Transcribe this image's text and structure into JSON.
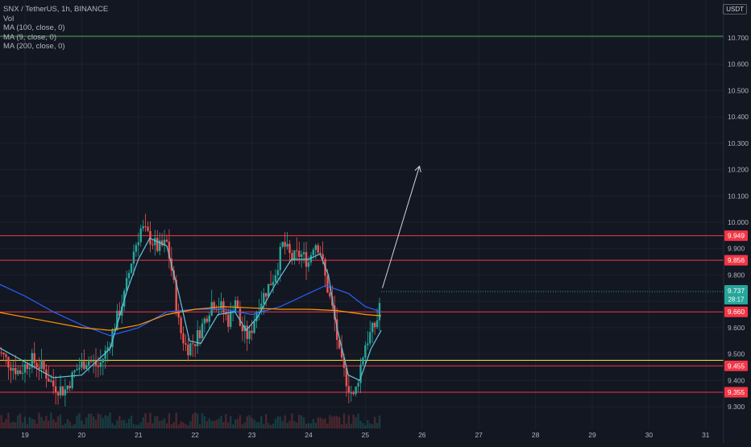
{
  "header": {
    "symbol_line": "SNX / TetherUS, 1h, BINANCE",
    "vol_label": "Vol",
    "indicators": [
      "MA (100, close, 0)",
      "MA (9, close, 0)",
      "MA (200, close, 0)"
    ],
    "currency": "USDT"
  },
  "colors": {
    "background": "#131722",
    "grid": "#1e222d",
    "up": "#26a69a",
    "down": "#ef5350",
    "level_line": "#f23645",
    "ma_short": "#5ec8e0",
    "ma_medium": "#2962ff",
    "ma_long": "#ff9800",
    "support_yellow": "#ffeb3b",
    "top_line": "#4caf50"
  },
  "chart_data": {
    "type": "candlestick",
    "x_ticks": [
      "19",
      "20",
      "21",
      "22",
      "23",
      "24",
      "25",
      "26",
      "27",
      "28",
      "29",
      "30",
      "31"
    ],
    "y_ticks": [
      "9.300",
      "9.400",
      "9.500",
      "9.600",
      "9.700",
      "9.800",
      "9.900",
      "10.000",
      "10.100",
      "10.200",
      "10.300",
      "10.400",
      "10.500",
      "10.600",
      "10.700"
    ],
    "ylim": [
      9.25,
      10.77
    ],
    "current_price": "9.737",
    "countdown": "28:17",
    "horizontal_levels": [
      {
        "value": 9.949,
        "label": "9.949",
        "color": "#f23645"
      },
      {
        "value": 9.856,
        "label": "9.856",
        "color": "#f23645"
      },
      {
        "value": 9.66,
        "label": "9.660",
        "color": "#f23645"
      },
      {
        "value": 9.455,
        "label": "9.455",
        "color": "#f23645"
      },
      {
        "value": 9.355,
        "label": "9.355",
        "color": "#f23645"
      },
      {
        "value": 9.476,
        "label": "",
        "color": "#ffeb3b"
      },
      {
        "value": 10.706,
        "label": "",
        "color": "#4caf50"
      }
    ],
    "arrow": {
      "from": {
        "x": 25.3,
        "y": 9.75
      },
      "to": {
        "x": 25.95,
        "y": 10.21
      }
    },
    "price_path": [
      [
        18.5,
        9.52
      ],
      [
        18.7,
        9.47
      ],
      [
        18.9,
        9.43
      ],
      [
        19.1,
        9.48
      ],
      [
        19.3,
        9.45
      ],
      [
        19.5,
        9.38
      ],
      [
        19.7,
        9.36
      ],
      [
        19.9,
        9.44
      ],
      [
        20.1,
        9.48
      ],
      [
        20.3,
        9.45
      ],
      [
        20.45,
        9.52
      ],
      [
        20.6,
        9.62
      ],
      [
        20.75,
        9.72
      ],
      [
        20.9,
        9.88
      ],
      [
        21.05,
        9.98
      ],
      [
        21.2,
        9.94
      ],
      [
        21.35,
        9.9
      ],
      [
        21.5,
        9.92
      ],
      [
        21.6,
        9.8
      ],
      [
        21.72,
        9.6
      ],
      [
        21.85,
        9.52
      ],
      [
        22.0,
        9.55
      ],
      [
        22.15,
        9.62
      ],
      [
        22.3,
        9.7
      ],
      [
        22.45,
        9.68
      ],
      [
        22.6,
        9.62
      ],
      [
        22.7,
        9.72
      ],
      [
        22.8,
        9.6
      ],
      [
        22.95,
        9.56
      ],
      [
        23.1,
        9.68
      ],
      [
        23.25,
        9.74
      ],
      [
        23.4,
        9.8
      ],
      [
        23.55,
        9.92
      ],
      [
        23.7,
        9.86
      ],
      [
        23.85,
        9.88
      ],
      [
        24.0,
        9.85
      ],
      [
        24.1,
        9.93
      ],
      [
        24.2,
        9.9
      ],
      [
        24.3,
        9.78
      ],
      [
        24.45,
        9.64
      ],
      [
        24.55,
        9.48
      ],
      [
        24.7,
        9.38
      ],
      [
        24.8,
        9.33
      ],
      [
        24.9,
        9.44
      ],
      [
        25.0,
        9.54
      ],
      [
        25.1,
        9.58
      ],
      [
        25.2,
        9.62
      ],
      [
        25.28,
        9.737
      ]
    ],
    "ma_short_path": [
      [
        18.5,
        9.53
      ],
      [
        19.0,
        9.47
      ],
      [
        19.5,
        9.41
      ],
      [
        20.0,
        9.42
      ],
      [
        20.5,
        9.52
      ],
      [
        20.8,
        9.74
      ],
      [
        21.0,
        9.86
      ],
      [
        21.2,
        9.94
      ],
      [
        21.5,
        9.91
      ],
      [
        21.7,
        9.74
      ],
      [
        21.9,
        9.55
      ],
      [
        22.1,
        9.54
      ],
      [
        22.4,
        9.65
      ],
      [
        22.7,
        9.66
      ],
      [
        22.9,
        9.59
      ],
      [
        23.1,
        9.64
      ],
      [
        23.4,
        9.76
      ],
      [
        23.7,
        9.86
      ],
      [
        24.0,
        9.86
      ],
      [
        24.2,
        9.88
      ],
      [
        24.35,
        9.8
      ],
      [
        24.5,
        9.6
      ],
      [
        24.7,
        9.42
      ],
      [
        24.9,
        9.4
      ],
      [
        25.1,
        9.52
      ],
      [
        25.28,
        9.59
      ]
    ],
    "ma_medium_path": [
      [
        18.5,
        9.77
      ],
      [
        19.0,
        9.72
      ],
      [
        19.5,
        9.66
      ],
      [
        20.0,
        9.61
      ],
      [
        20.5,
        9.57
      ],
      [
        21.0,
        9.6
      ],
      [
        21.5,
        9.66
      ],
      [
        22.0,
        9.67
      ],
      [
        22.5,
        9.67
      ],
      [
        23.0,
        9.65
      ],
      [
        23.5,
        9.68
      ],
      [
        24.0,
        9.73
      ],
      [
        24.3,
        9.76
      ],
      [
        24.7,
        9.73
      ],
      [
        25.0,
        9.68
      ],
      [
        25.28,
        9.66
      ]
    ],
    "ma_long_path": [
      [
        18.5,
        9.66
      ],
      [
        19.0,
        9.64
      ],
      [
        19.5,
        9.62
      ],
      [
        20.0,
        9.6
      ],
      [
        20.5,
        9.59
      ],
      [
        21.0,
        9.61
      ],
      [
        21.5,
        9.65
      ],
      [
        22.0,
        9.67
      ],
      [
        22.5,
        9.68
      ],
      [
        23.0,
        9.675
      ],
      [
        23.5,
        9.67
      ],
      [
        24.0,
        9.67
      ],
      [
        24.5,
        9.665
      ],
      [
        25.0,
        9.65
      ],
      [
        25.28,
        9.645
      ]
    ]
  }
}
